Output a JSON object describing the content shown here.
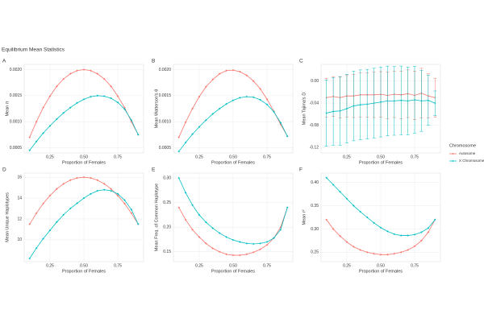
{
  "title": "Equilibrium Mean Statistics",
  "legend_title": "Chromosome",
  "chart_data": [
    {
      "type": "line",
      "panel_label": "A",
      "ylabel": "Mean π",
      "xlabel": "Proportion of Females",
      "x": [
        0.1,
        0.15,
        0.2,
        0.25,
        0.3,
        0.35,
        0.4,
        0.45,
        0.5,
        0.55,
        0.6,
        0.65,
        0.7,
        0.75,
        0.8,
        0.85,
        0.9
      ],
      "xlim": [
        0.06,
        0.94
      ],
      "xticks": [
        0.25,
        {
          "value": 0.5,
          "label": "0.50"
        },
        0.75
      ],
      "ylim": [
        0.0004,
        0.0021
      ],
      "yticks": [
        0.0005,
        {
          "value": 0.001,
          "label": "0.0010"
        },
        0.0015,
        {
          "value": 0.002,
          "label": "0.0020"
        }
      ],
      "grid": true,
      "series": [
        {
          "name": "Autosome",
          "color": "#f8766d",
          "values": [
            0.0007,
            0.001,
            0.00127,
            0.00149,
            0.00168,
            0.00182,
            0.00192,
            0.00198,
            0.002,
            0.00198,
            0.00192,
            0.00182,
            0.00168,
            0.00149,
            0.00127,
            0.001,
            0.00075
          ]
        },
        {
          "name": "X Chromosome",
          "color": "#00bfc4",
          "values": [
            0.00045,
            0.00062,
            0.00078,
            0.00092,
            0.00105,
            0.00117,
            0.00127,
            0.00136,
            0.00143,
            0.00148,
            0.0015,
            0.00149,
            0.00145,
            0.00137,
            0.00124,
            0.00103,
            0.00075
          ]
        }
      ]
    },
    {
      "type": "line",
      "panel_label": "B",
      "ylabel": "Mean Watterson's θ",
      "xlabel": "Proportion of Females",
      "x": [
        0.1,
        0.15,
        0.2,
        0.25,
        0.3,
        0.35,
        0.4,
        0.45,
        0.5,
        0.55,
        0.6,
        0.65,
        0.7,
        0.75,
        0.8,
        0.85,
        0.9
      ],
      "xlim": [
        0.06,
        0.94
      ],
      "xticks": [
        0.25,
        {
          "value": 0.5,
          "label": "0.50"
        },
        0.75
      ],
      "ylim": [
        0.0004,
        0.0021
      ],
      "yticks": [
        0.0005,
        {
          "value": 0.001,
          "label": "0.0010"
        },
        0.0015,
        {
          "value": 0.002,
          "label": "0.0020"
        }
      ],
      "grid": true,
      "series": [
        {
          "name": "Autosome",
          "color": "#f8766d",
          "values": [
            0.0007,
            0.00099,
            0.00125,
            0.00148,
            0.00167,
            0.00181,
            0.00192,
            0.00198,
            0.00199,
            0.00196,
            0.00189,
            0.00178,
            0.00163,
            0.00143,
            0.0012,
            0.00095,
            0.00072
          ]
        },
        {
          "name": "X Chromosome",
          "color": "#00bfc4",
          "values": [
            0.00043,
            0.0006,
            0.00076,
            0.0009,
            0.00103,
            0.00115,
            0.00125,
            0.00134,
            0.00141,
            0.00146,
            0.00148,
            0.00147,
            0.00142,
            0.00133,
            0.00119,
            0.00098,
            0.00072
          ]
        }
      ]
    },
    {
      "type": "line",
      "panel_label": "C",
      "ylabel": "Mean Tajima's D",
      "xlabel": "Proportion of Females",
      "x": [
        0.1,
        0.15,
        0.2,
        0.25,
        0.3,
        0.35,
        0.4,
        0.45,
        0.5,
        0.55,
        0.6,
        0.65,
        0.7,
        0.75,
        0.8,
        0.85,
        0.9
      ],
      "xlim": [
        0.06,
        0.94
      ],
      "xticks": [
        0.25,
        {
          "value": 0.5,
          "label": "0.50"
        },
        0.75
      ],
      "ylim": [
        -0.13,
        0.03
      ],
      "yticks": [
        -0.12,
        -0.08,
        -0.04,
        {
          "value": 0,
          "label": "0.00"
        }
      ],
      "grid": true,
      "series": [
        {
          "name": "Autosome",
          "color": "#f8766d",
          "values": [
            -0.03,
            -0.028,
            -0.03,
            -0.027,
            -0.027,
            -0.025,
            -0.025,
            -0.025,
            -0.024,
            -0.026,
            -0.024,
            -0.025,
            -0.023,
            -0.026,
            -0.022,
            -0.027,
            -0.03
          ],
          "errors": [
            0.035,
            0.036,
            0.037,
            0.038,
            0.039,
            0.04,
            0.04,
            0.041,
            0.041,
            0.042,
            0.042,
            0.043,
            0.043,
            0.044,
            0.045,
            0.04,
            0.035
          ]
        },
        {
          "name": "X Chromosome",
          "color": "#00bfc4",
          "values": [
            -0.058,
            -0.055,
            -0.054,
            -0.05,
            -0.045,
            -0.043,
            -0.042,
            -0.04,
            -0.038,
            -0.036,
            -0.036,
            -0.035,
            -0.036,
            -0.034,
            -0.036,
            -0.035,
            -0.04
          ],
          "errors": [
            0.06,
            0.061,
            0.062,
            0.062,
            0.063,
            0.063,
            0.063,
            0.063,
            0.063,
            0.063,
            0.062,
            0.062,
            0.061,
            0.06,
            0.055,
            0.045,
            0.022
          ]
        }
      ]
    },
    {
      "type": "line",
      "panel_label": "D",
      "ylabel": "Mean Unique Haplotypes",
      "xlabel": "Proportion of Females",
      "x": [
        0.1,
        0.15,
        0.2,
        0.25,
        0.3,
        0.35,
        0.4,
        0.45,
        0.5,
        0.55,
        0.6,
        0.65,
        0.7,
        0.75,
        0.8,
        0.85,
        0.9
      ],
      "xlim": [
        0.06,
        0.94
      ],
      "xticks": [
        0.25,
        {
          "value": 0.5,
          "label": "0.50"
        },
        0.75
      ],
      "ylim": [
        7.9,
        16.4
      ],
      "yticks": [
        10,
        12,
        14,
        16
      ],
      "grid": true,
      "series": [
        {
          "name": "Autosome",
          "color": "#f8766d",
          "values": [
            11.5,
            12.55,
            13.47,
            14.24,
            14.88,
            15.37,
            15.72,
            15.93,
            16.0,
            15.93,
            15.72,
            15.37,
            14.88,
            14.24,
            13.47,
            12.55,
            11.5
          ]
        },
        {
          "name": "X Chromosome",
          "color": "#00bfc4",
          "values": [
            8.2,
            9.2,
            10.1,
            10.9,
            11.7,
            12.4,
            13.0,
            13.5,
            14.0,
            14.4,
            14.7,
            14.8,
            14.7,
            14.4,
            13.8,
            12.9,
            11.5
          ]
        }
      ]
    },
    {
      "type": "line",
      "panel_label": "E",
      "ylabel": "Mean Freq. of Common Haplotype",
      "xlabel": "Proportion of Females",
      "x": [
        0.1,
        0.15,
        0.2,
        0.25,
        0.3,
        0.35,
        0.4,
        0.45,
        0.5,
        0.55,
        0.6,
        0.65,
        0.7,
        0.75,
        0.8,
        0.85,
        0.9
      ],
      "xlim": [
        0.06,
        0.94
      ],
      "xticks": [
        0.25,
        {
          "value": 0.5,
          "label": "0.50"
        },
        0.75
      ],
      "ylim": [
        0.13,
        0.31
      ],
      "yticks": [
        0.15,
        {
          "value": 0.2,
          "label": "0.20"
        },
        0.25,
        {
          "value": 0.3,
          "label": "0.30"
        }
      ],
      "grid": true,
      "series": [
        {
          "name": "Autosome",
          "color": "#f8766d",
          "values": [
            0.24,
            0.215,
            0.195,
            0.18,
            0.167,
            0.157,
            0.15,
            0.145,
            0.143,
            0.143,
            0.145,
            0.149,
            0.155,
            0.164,
            0.178,
            0.2,
            0.24
          ]
        },
        {
          "name": "X Chromosome",
          "color": "#00bfc4",
          "values": [
            0.3,
            0.27,
            0.245,
            0.225,
            0.21,
            0.198,
            0.188,
            0.18,
            0.174,
            0.17,
            0.167,
            0.166,
            0.167,
            0.17,
            0.178,
            0.195,
            0.24
          ]
        }
      ]
    },
    {
      "type": "line",
      "panel_label": "F",
      "ylabel": "Mean r²",
      "xlabel": "Proportion of Females",
      "x": [
        0.1,
        0.15,
        0.2,
        0.25,
        0.3,
        0.35,
        0.4,
        0.45,
        0.5,
        0.55,
        0.6,
        0.65,
        0.7,
        0.75,
        0.8,
        0.85,
        0.9
      ],
      "xlim": [
        0.06,
        0.94
      ],
      "xticks": [
        0.25,
        {
          "value": 0.5,
          "label": "0.50"
        },
        0.75
      ],
      "ylim": [
        0.23,
        0.42
      ],
      "yticks": [
        0.25,
        {
          "value": 0.3,
          "label": "0.30"
        },
        0.35,
        {
          "value": 0.4,
          "label": "0.40"
        }
      ],
      "grid": true,
      "series": [
        {
          "name": "Autosome",
          "color": "#f8766d",
          "values": [
            0.32,
            0.3,
            0.285,
            0.272,
            0.262,
            0.255,
            0.25,
            0.247,
            0.245,
            0.245,
            0.247,
            0.25,
            0.255,
            0.263,
            0.275,
            0.293,
            0.32
          ]
        },
        {
          "name": "X Chromosome",
          "color": "#00bfc4",
          "values": [
            0.41,
            0.395,
            0.38,
            0.365,
            0.35,
            0.337,
            0.325,
            0.313,
            0.303,
            0.295,
            0.289,
            0.286,
            0.286,
            0.288,
            0.293,
            0.302,
            0.32
          ]
        }
      ]
    }
  ]
}
